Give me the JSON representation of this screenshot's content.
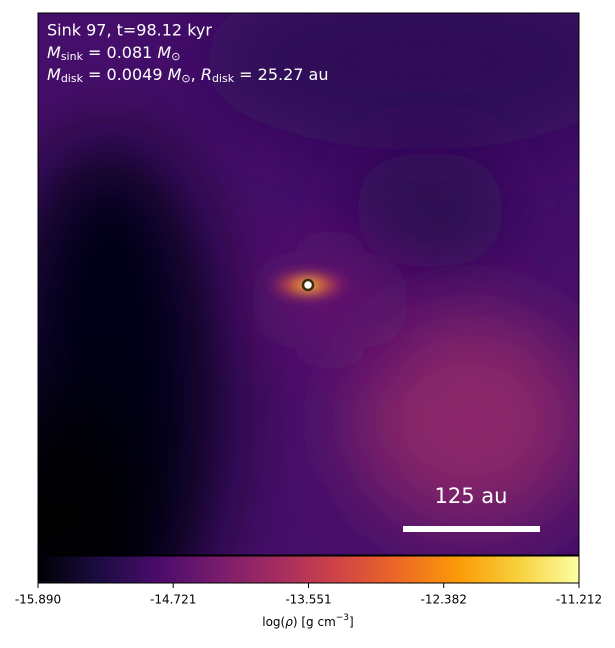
{
  "chart_data": {
    "type": "image",
    "annotation": {
      "line1": "Sink 97, t=98.12 kyr",
      "line2": [
        "M",
        "sink",
        " = 0.081 ",
        "M",
        "⊙"
      ],
      "line3": [
        "M",
        "disk",
        " = 0.0049 ",
        "M",
        "⊙",
        ", ",
        "R",
        "disk",
        " = 25.27 au"
      ]
    },
    "scale_bar_label": "125 au",
    "colormap": "inferno",
    "colorbar": {
      "label": [
        "log(",
        "ρ",
        ") [g cm",
        "−3",
        "]"
      ],
      "clim": [
        -15.89,
        -11.212
      ],
      "ticks": [
        {
          "value": -15.89,
          "label": "-15.890"
        },
        -14.721,
        -13.551,
        -12.382,
        -11.212
      ]
    }
  }
}
